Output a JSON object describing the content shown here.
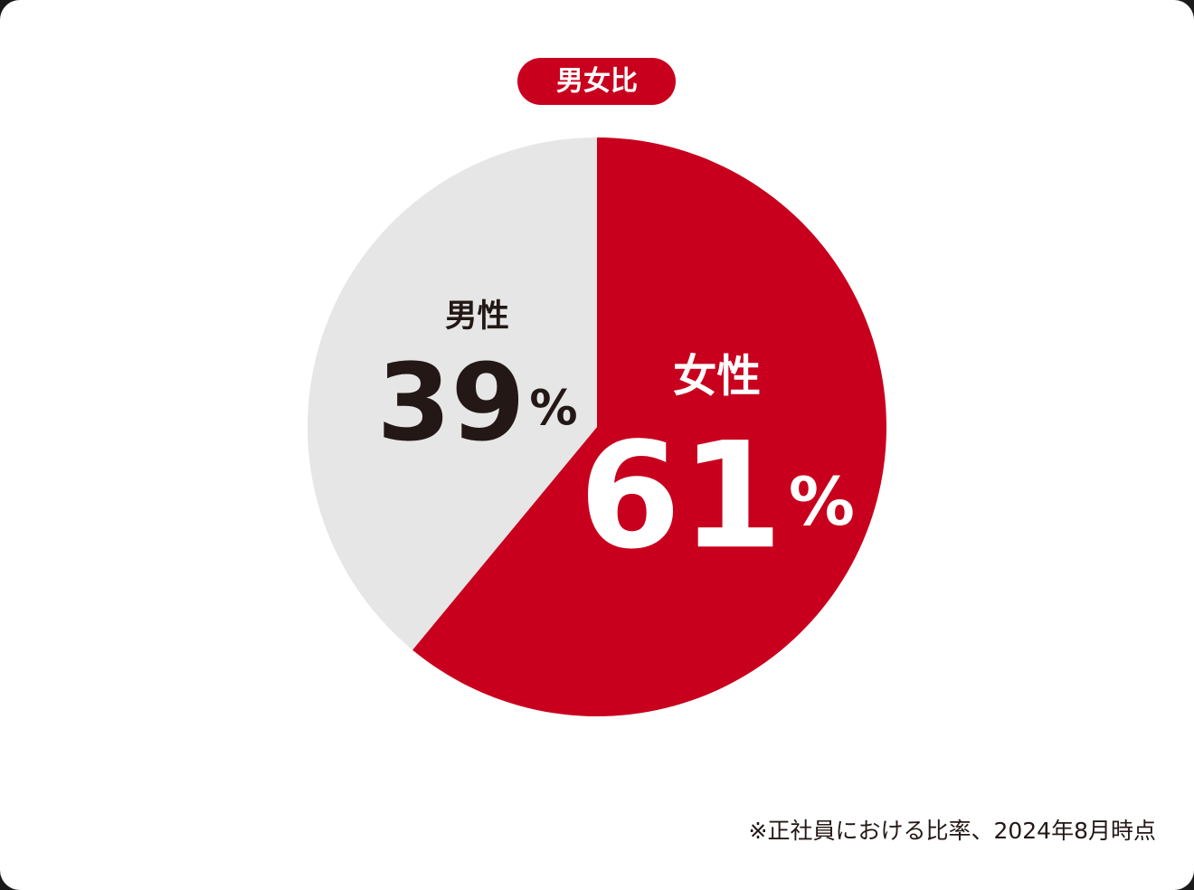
{
  "chart_data": {
    "type": "pie",
    "title": "男女比",
    "categories": [
      "女性",
      "男性"
    ],
    "values": [
      61,
      39
    ],
    "value_labels": [
      "61%",
      "39%"
    ],
    "colors": [
      "#c8001e",
      "#e6e6e6"
    ],
    "note": "※正社員における比率、2024年8月時点"
  }
}
